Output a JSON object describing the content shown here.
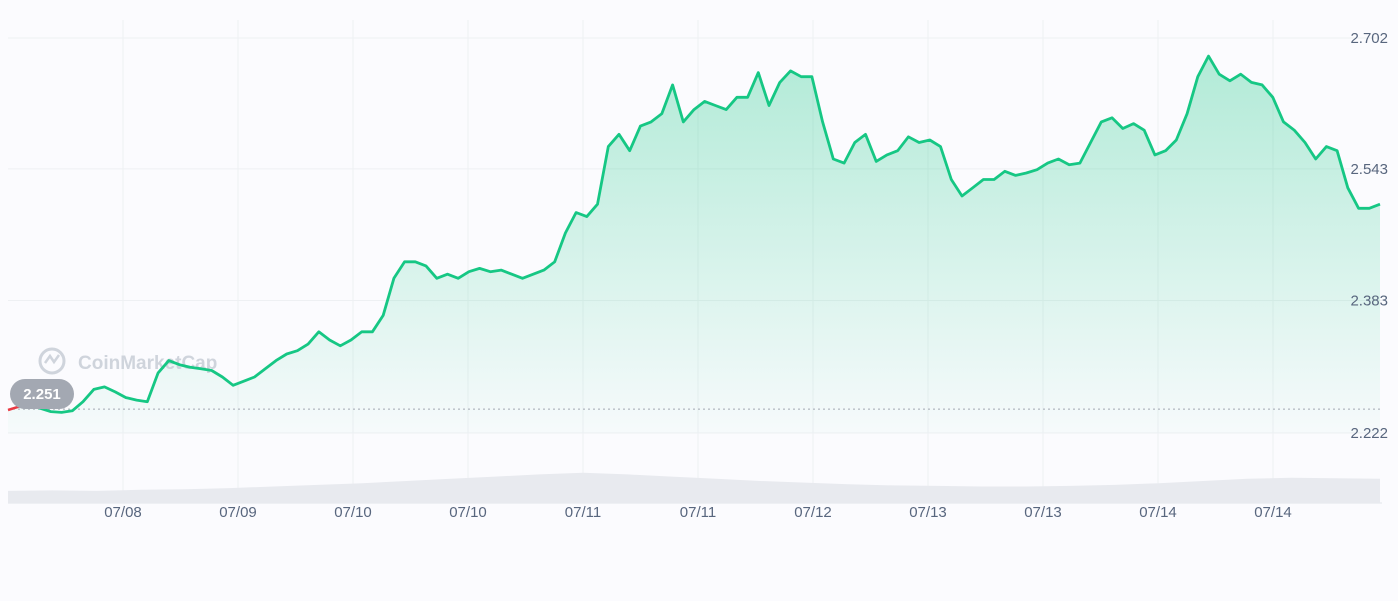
{
  "watermark": "CoinMarketCap",
  "current_price_label": "2.251",
  "colors": {
    "up": "#16c784",
    "down": "#ea3943",
    "grid": "#eef0f3",
    "axis_text": "#58667e",
    "badge": "#a3a8b2",
    "volume": "#e8eaef"
  },
  "chart_data": {
    "type": "area",
    "y_ticks": [
      2.222,
      2.383,
      2.543,
      2.702
    ],
    "y_tick_labels": [
      "2.222",
      "2.383",
      "2.543",
      "2.702"
    ],
    "x_tick_labels": [
      "07/08",
      "07/09",
      "07/10",
      "07/10",
      "07/11",
      "07/11",
      "07/12",
      "07/13",
      "07/13",
      "07/14",
      "07/14"
    ],
    "ylim": [
      2.222,
      2.702
    ],
    "baseline": 2.251,
    "grid": true,
    "series": [
      {
        "values": [
          2.25,
          2.254,
          2.256,
          2.252,
          2.248,
          2.247,
          2.249,
          2.26,
          2.275,
          2.278,
          2.272,
          2.265,
          2.262,
          2.26,
          2.295,
          2.31,
          2.305,
          2.302,
          2.3,
          2.298,
          2.29,
          2.28,
          2.285,
          2.29,
          2.3,
          2.31,
          2.318,
          2.322,
          2.33,
          2.345,
          2.335,
          2.328,
          2.335,
          2.345,
          2.345,
          2.365,
          2.41,
          2.43,
          2.43,
          2.425,
          2.41,
          2.415,
          2.41,
          2.418,
          2.422,
          2.418,
          2.42,
          2.415,
          2.41,
          2.415,
          2.42,
          2.43,
          2.465,
          2.49,
          2.485,
          2.5,
          2.57,
          2.585,
          2.565,
          2.595,
          2.6,
          2.61,
          2.645,
          2.6,
          2.615,
          2.625,
          2.62,
          2.615,
          2.63,
          2.63,
          2.66,
          2.62,
          2.648,
          2.662,
          2.655,
          2.655,
          2.6,
          2.555,
          2.55,
          2.575,
          2.585,
          2.552,
          2.56,
          2.565,
          2.582,
          2.575,
          2.578,
          2.57,
          2.53,
          2.51,
          2.52,
          2.53,
          2.53,
          2.54,
          2.535,
          2.538,
          2.542,
          2.55,
          2.555,
          2.548,
          2.55,
          2.575,
          2.6,
          2.605,
          2.592,
          2.598,
          2.59,
          2.56,
          2.565,
          2.578,
          2.61,
          2.655,
          2.68,
          2.658,
          2.65,
          2.658,
          2.648,
          2.645,
          2.63,
          2.6,
          2.59,
          2.575,
          2.555,
          2.57,
          2.565,
          2.52,
          2.495,
          2.495,
          2.5
        ]
      }
    ],
    "volume": [
      0.22,
      0.23,
      0.22,
      0.24,
      0.25,
      0.27,
      0.3,
      0.33,
      0.36,
      0.4,
      0.44,
      0.48,
      0.52,
      0.55,
      0.52,
      0.48,
      0.44,
      0.4,
      0.37,
      0.34,
      0.32,
      0.31,
      0.3,
      0.3,
      0.31,
      0.33,
      0.36,
      0.4,
      0.44,
      0.46,
      0.45,
      0.44
    ]
  }
}
